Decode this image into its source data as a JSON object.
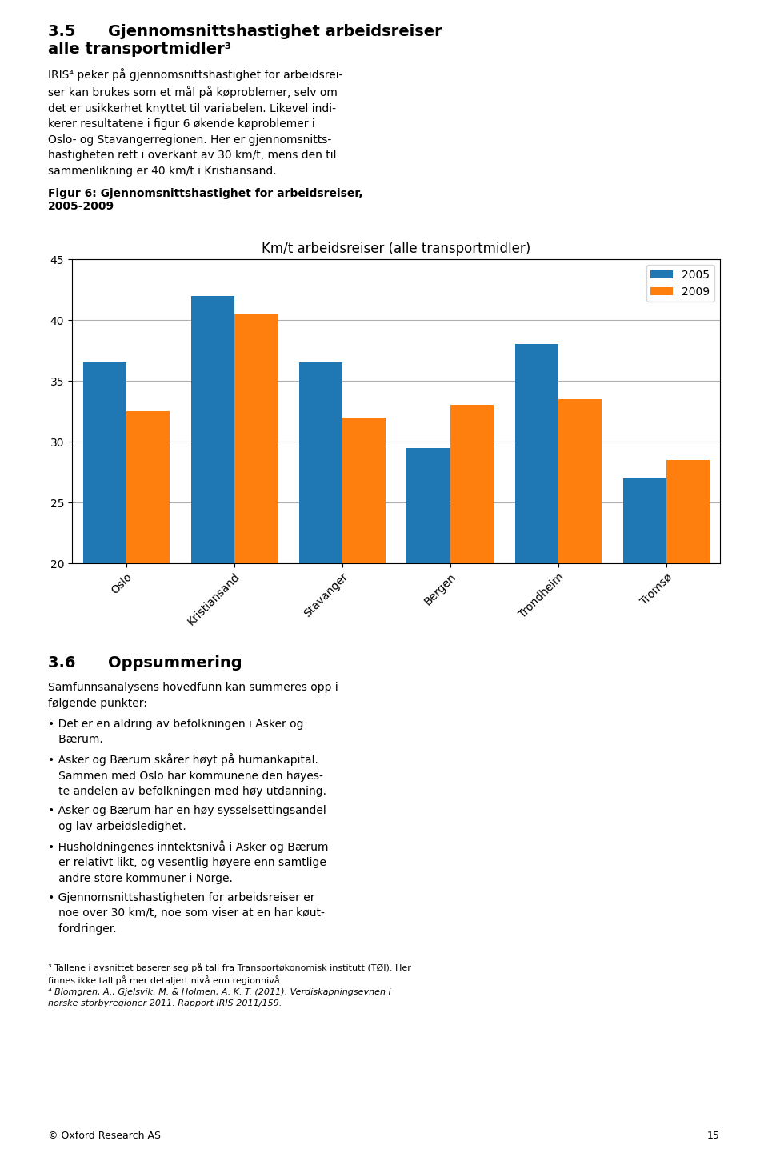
{
  "chart_data": {
    "type": "bar",
    "title": "Km/t arbeidsreiser (alle transportmidler)",
    "categories": [
      "Oslo",
      "Kristiansand",
      "Stavanger",
      "Bergen",
      "Trondheim",
      "Tromsø"
    ],
    "series": [
      {
        "name": "2005",
        "values": [
          36.5,
          42.0,
          36.5,
          29.5,
          38.0,
          27.0
        ]
      },
      {
        "name": "2009",
        "values": [
          32.5,
          40.5,
          32.0,
          33.0,
          33.5,
          28.5
        ]
      }
    ],
    "ylim": [
      20,
      45
    ],
    "yticks": [
      20,
      25,
      30,
      35,
      40,
      45
    ],
    "grid": true,
    "legend": "upper right",
    "annotations": [
      "3.5      Gjennomsnittshastighet arbeidsreiser\nalle transportmidler³",
      "IRIS⁴ peker på gjennomsnittshastighet for arbeidsrei-\nser kan brukes som et mål på køproblemer, selv om\ndet er usikkerhet knyttet til variabelen. Likevel indi-\nkerer resultatene i figur 6 økende køproblemer i\nOslo- og Stavangerregionen. Her er gjennomsnitts-\nhastigheten rett i overkant av 30 km/t, mens den til\nsammenlikning er 40 km/t i Kristiansand.",
      "Figur 6: Gjennomsnittshastighet for arbeidsreiser,\n2005-2009",
      "3.6      Oppsummering",
      "Samfunnsanalysens hovedfunn kan summeres opp i\nfølgende punkter:",
      "• Det er en aldring av befolkningen i Asker og\n   Bærum.",
      "• Asker og Bærum skårer høyt på humankapital.\n   Sammen med Oslo har kommunene den høyes-\n   te andelen av befolkningen med høy utdanning.",
      "• Asker og Bærum har en høy sysselsettingsandel\n   og lav arbeidsledighet.",
      "• Husholdningenes inntektsnivå i Asker og Bærum\n   er relativt likt, og vesentlig høyere enn samtlige\n   andre store kommuner i Norge.",
      "• Gjennomsnittshastigheten for arbeidsreiser er\n   noe over 30 km/t, noe som viser at en har køut-\n   fordringer.",
      "³ Tallene i avsnittet baserer seg på tall fra Transportøkonomisk institutt (TØI). Her",
      "finnes ikke tall på mer detaljert nivå enn regionnivå.",
      "⁴ Blomgren, A., Gjelsvik, M. & Holmen, A. K. T. (2011). Verdiskapningsevnen i",
      "norske storbyregioner 2011. Rapport IRIS 2011/159.",
      "© Oxford Research AS",
      "15"
    ]
  }
}
